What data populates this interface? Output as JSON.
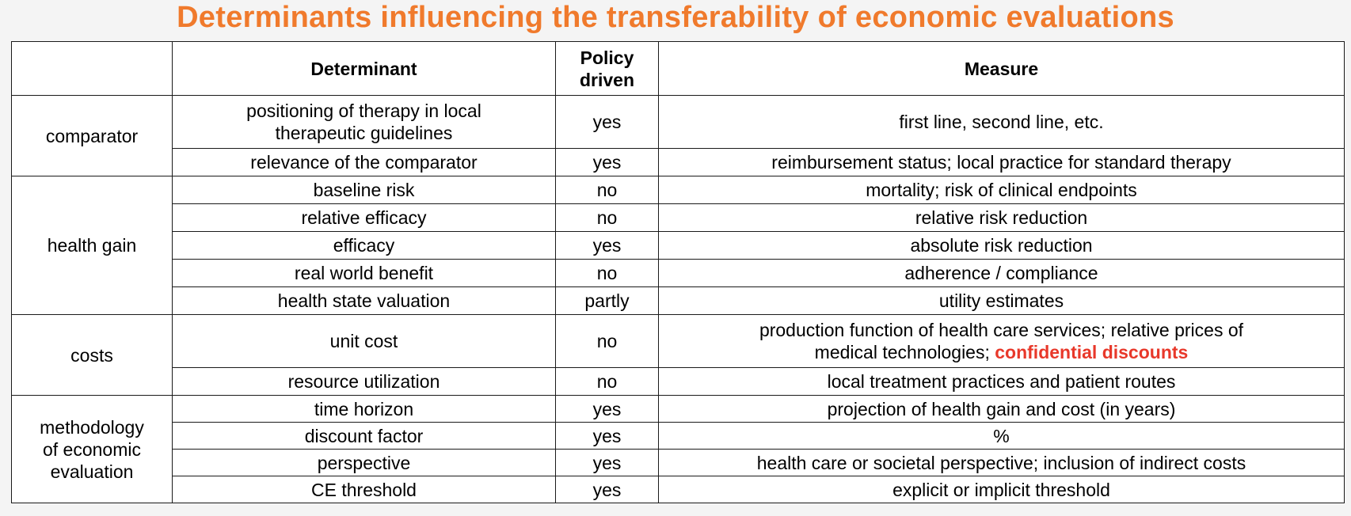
{
  "title": "Determinants influencing the transferability of economic evaluations",
  "table": {
    "headers": {
      "category": "",
      "determinant": "Determinant",
      "policy_driven_line1": "Policy",
      "policy_driven_line2": "driven",
      "measure": "Measure"
    },
    "groups": [
      {
        "category": "comparator",
        "rows": [
          {
            "determinant_line1": "positioning of therapy in local",
            "determinant_line2": "therapeutic guidelines",
            "policy": "yes",
            "measure": "first line, second line, etc."
          },
          {
            "determinant": "relevance of the comparator",
            "policy": "yes",
            "measure": "reimbursement status; local practice for standard therapy"
          }
        ]
      },
      {
        "category": "health gain",
        "rows": [
          {
            "determinant": "baseline risk",
            "policy": "no",
            "measure": "mortality; risk of clinical endpoints"
          },
          {
            "determinant": "relative efficacy",
            "policy": "no",
            "measure": "relative risk reduction"
          },
          {
            "determinant": "efficacy",
            "policy": "yes",
            "measure": "absolute risk reduction"
          },
          {
            "determinant": "real world benefit",
            "policy": "no",
            "measure": "adherence / compliance"
          },
          {
            "determinant": "health state valuation",
            "policy": "partly",
            "measure": "utility estimates"
          }
        ]
      },
      {
        "category": "costs",
        "rows": [
          {
            "determinant": "unit cost",
            "policy": "no",
            "measure_line1": "production function of health care services; relative prices of",
            "measure_line2_plain": "medical technologies; ",
            "measure_line2_highlight": "confidential discounts"
          },
          {
            "determinant": "resource utilization",
            "policy": "no",
            "measure": "local treatment practices and patient routes"
          }
        ]
      },
      {
        "category_line1": "methodology",
        "category_line2": "of economic",
        "category_line3": "evaluation",
        "rows": [
          {
            "determinant": "time horizon",
            "policy": "yes",
            "measure": "projection of health gain and cost (in years)"
          },
          {
            "determinant": "discount factor",
            "policy": "yes",
            "measure": "%"
          },
          {
            "determinant": "perspective",
            "policy": "yes",
            "measure": "health care or societal perspective; inclusion of indirect costs"
          },
          {
            "determinant": "CE threshold",
            "policy": "yes",
            "measure": "explicit or implicit threshold"
          }
        ]
      }
    ],
    "highlight_color": "#e8382a",
    "title_color": "#f07a2c"
  }
}
